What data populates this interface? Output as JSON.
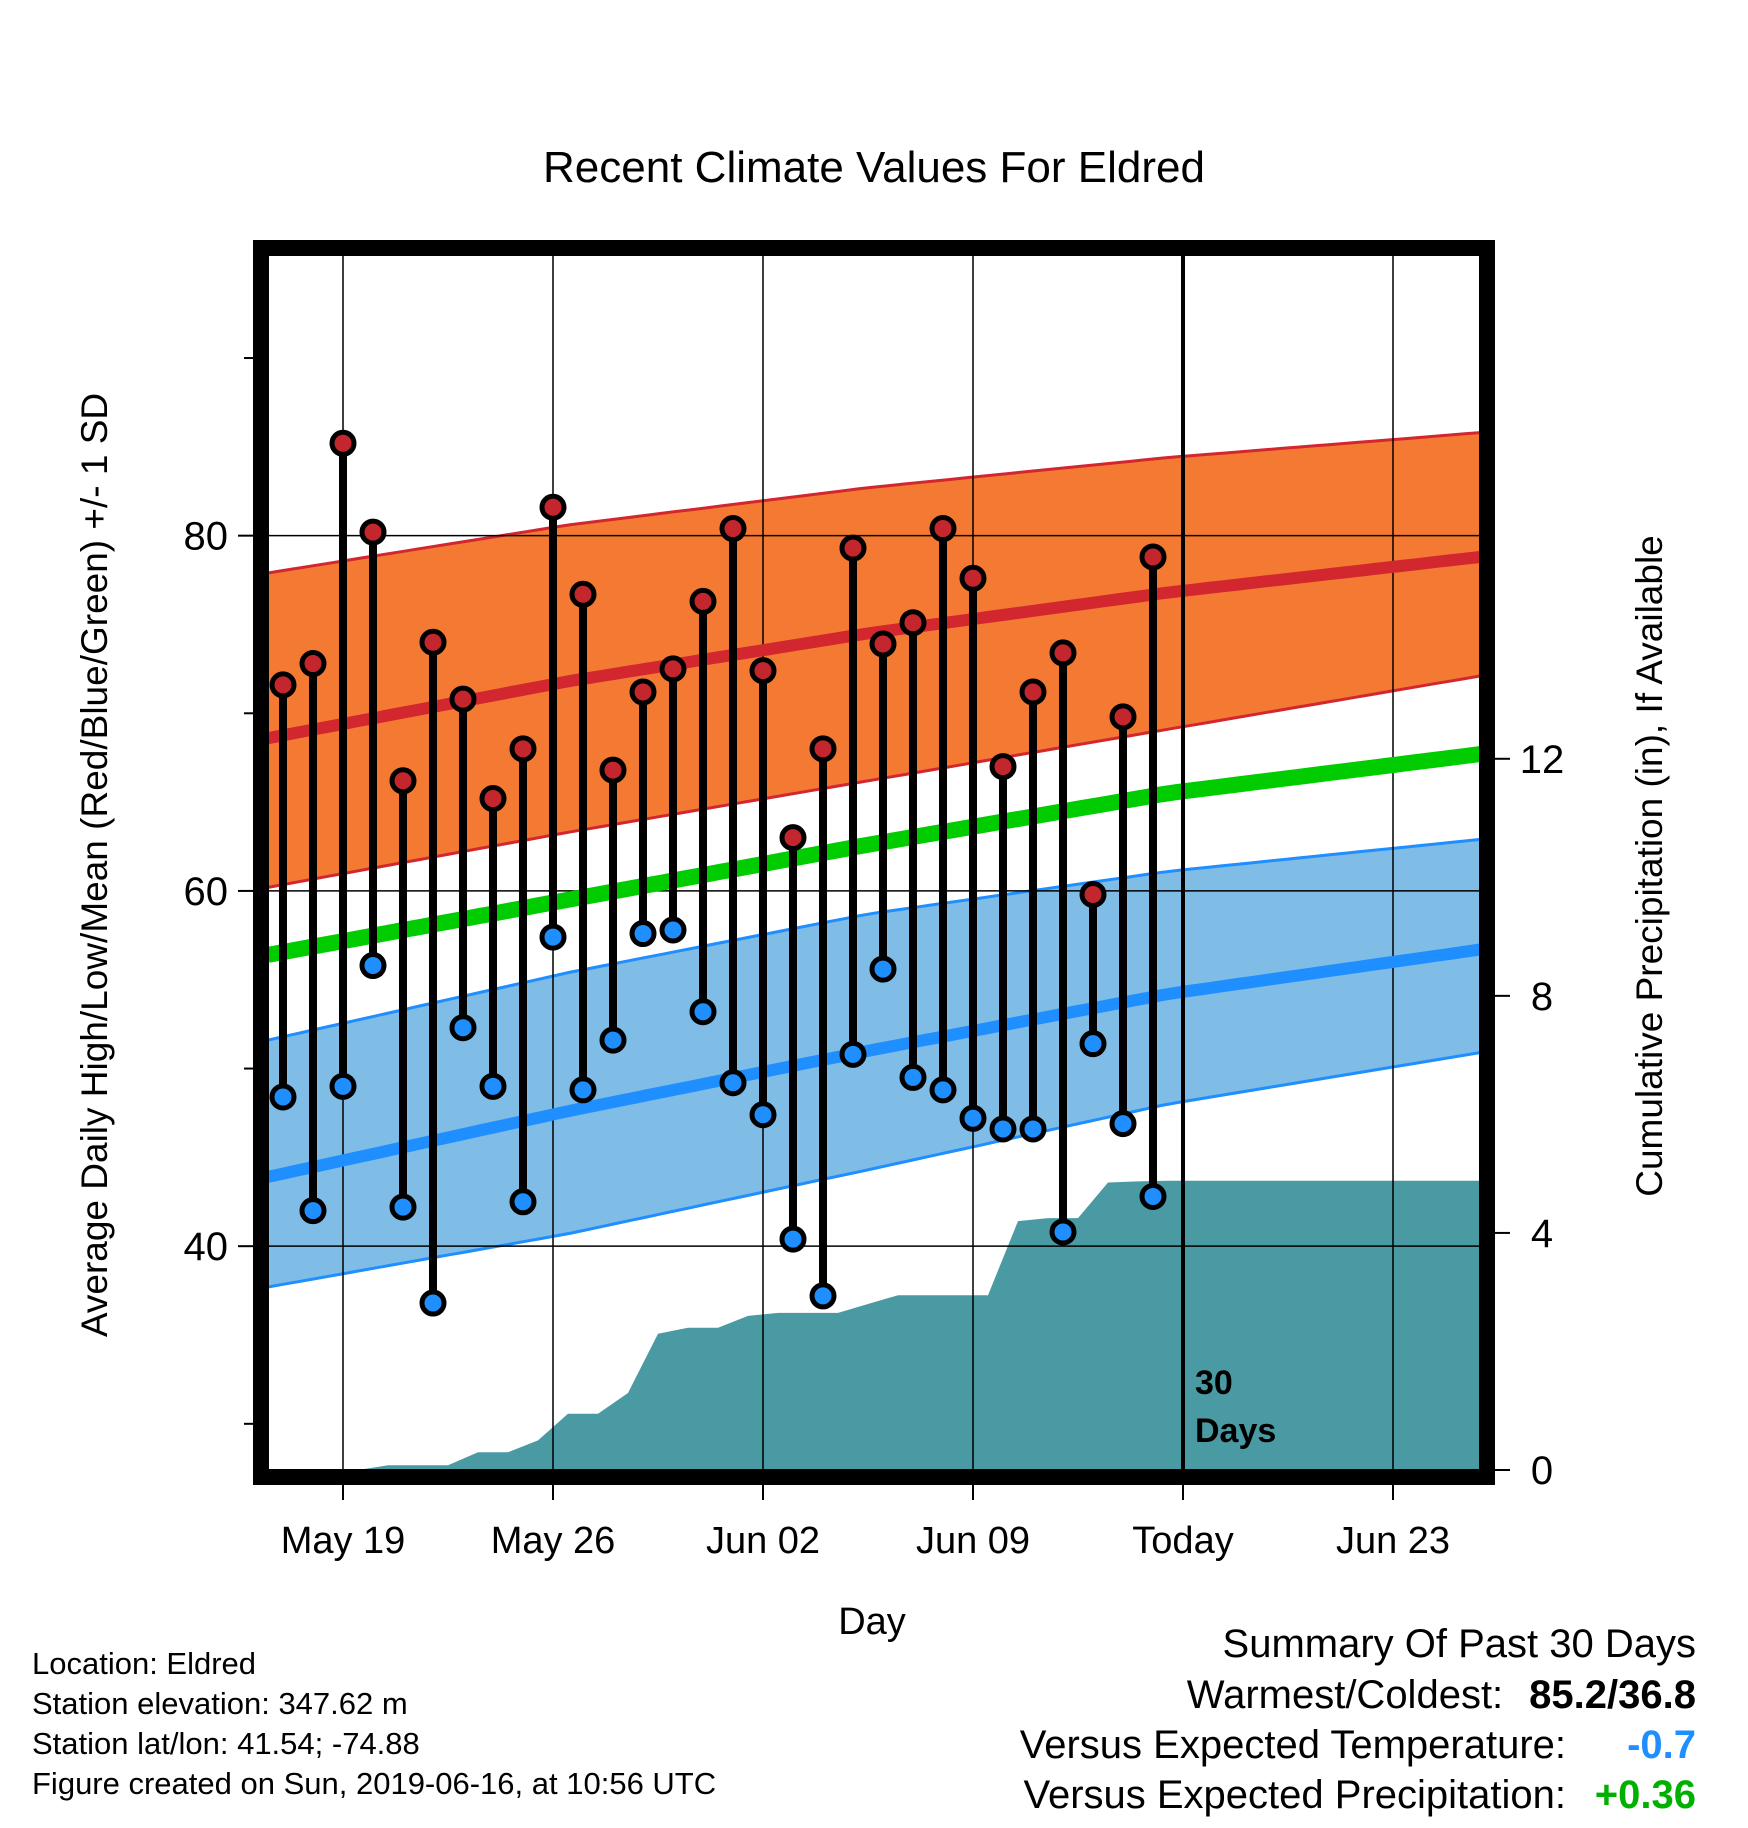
{
  "chart_data": {
    "type": "line",
    "title": "Recent Climate Values For Eldred",
    "xlabel": "Day",
    "ylabel": "Average Daily High/Low/Mean (Red/Blue/Green) +/- 1 SD",
    "ylabel_right": "Cumulative Precipitation (in), If Available",
    "start_day": "May 16",
    "xlim": [
      0,
      40.4
    ],
    "ylim": [
      27.4,
      95.8
    ],
    "ylim_right": [
      0,
      20.5
    ],
    "y_ticks": [
      40,
      60,
      80
    ],
    "y_minor_ticks": [
      30,
      50,
      70,
      90
    ],
    "y_ticks_right": [
      0,
      4,
      8,
      12
    ],
    "x_ticks": [
      {
        "x": 2.5,
        "label": "May 19"
      },
      {
        "x": 9.5,
        "label": "May 26"
      },
      {
        "x": 16.5,
        "label": "Jun 02"
      },
      {
        "x": 23.5,
        "label": "Jun 09"
      },
      {
        "x": 30.5,
        "label": "Today"
      },
      {
        "x": 37.5,
        "label": "Jun 23"
      }
    ],
    "today_x": 30.5,
    "today_label": [
      "30",
      "Days"
    ],
    "normals": {
      "x": [
        0,
        10,
        20,
        30,
        40.4
      ],
      "high_mean": [
        68.6,
        71.8,
        74.5,
        76.8,
        78.8
      ],
      "high_upper": [
        77.9,
        80.6,
        82.7,
        84.4,
        85.8
      ],
      "high_lower": [
        60.2,
        63.3,
        66.2,
        69.1,
        72.1
      ],
      "avg_mean": [
        56.4,
        59.5,
        62.6,
        65.5,
        67.7
      ],
      "low_mean": [
        43.9,
        47.6,
        51.0,
        54.2,
        56.7
      ],
      "low_upper": [
        51.6,
        55.4,
        58.7,
        61.1,
        62.9
      ],
      "low_lower": [
        37.7,
        40.7,
        44.3,
        48.0,
        50.9
      ]
    },
    "series": [
      {
        "name": "Daily High",
        "x": [
          0.5,
          1.5,
          2.5,
          3.5,
          4.5,
          5.5,
          6.5,
          7.5,
          8.5,
          9.5,
          10.5,
          11.5,
          12.5,
          13.5,
          14.5,
          15.5,
          16.5,
          17.5,
          18.5,
          19.5,
          20.5,
          21.5,
          22.5,
          23.5,
          24.5,
          25.5,
          26.5,
          27.5,
          28.5,
          29.5
        ],
        "values": [
          71.6,
          72.8,
          85.2,
          80.2,
          66.2,
          74.0,
          70.8,
          65.2,
          68.0,
          81.6,
          76.7,
          66.8,
          71.2,
          72.5,
          76.3,
          80.4,
          72.4,
          63.0,
          68.0,
          79.3,
          73.9,
          75.1,
          80.4,
          77.6,
          67.0,
          71.2,
          73.4,
          59.8,
          69.8,
          78.8
        ]
      },
      {
        "name": "Daily Low",
        "x": [
          0.5,
          1.5,
          2.5,
          3.5,
          4.5,
          5.5,
          6.5,
          7.5,
          8.5,
          9.5,
          10.5,
          11.5,
          12.5,
          13.5,
          14.5,
          15.5,
          16.5,
          17.5,
          18.5,
          19.5,
          20.5,
          21.5,
          22.5,
          23.5,
          24.5,
          25.5,
          26.5,
          27.5,
          28.5,
          29.5
        ],
        "values": [
          48.4,
          42.0,
          49.0,
          55.8,
          42.2,
          36.8,
          52.3,
          49.0,
          42.5,
          57.4,
          48.8,
          51.6,
          57.6,
          57.8,
          53.2,
          49.2,
          47.4,
          40.4,
          37.2,
          50.8,
          55.6,
          49.5,
          48.8,
          47.2,
          46.6,
          46.6,
          40.8,
          51.4,
          46.9,
          42.8
        ]
      },
      {
        "name": "Cumulative Precipitation",
        "axis": "right",
        "x": [
          0,
          3,
          4,
          6,
          7,
          8,
          9,
          10,
          11,
          12,
          13,
          14,
          15,
          16,
          17,
          18,
          19,
          20,
          21,
          22,
          23,
          24,
          25,
          26,
          27,
          28,
          29,
          30,
          40.4
        ],
        "values": [
          0,
          0,
          0.08,
          0.08,
          0.3,
          0.3,
          0.5,
          0.95,
          0.95,
          1.3,
          2.3,
          2.4,
          2.4,
          2.6,
          2.65,
          2.65,
          2.65,
          2.8,
          2.95,
          2.95,
          2.95,
          2.95,
          4.2,
          4.25,
          4.25,
          4.85,
          4.87,
          4.88,
          4.88
        ]
      }
    ]
  },
  "footer": {
    "location": "Location: Eldred",
    "elevation": "Station elevation: 347.62 m",
    "latlon": "Station lat/lon: 41.54; -74.88",
    "created": "Figure created on Sun, 2019-06-16, at 10:56 UTC"
  },
  "summary": {
    "title": "Summary Of Past 30 Days",
    "warmest_coldest_label": "Warmest/Coldest:",
    "warmest_coldest_value": "85.2/36.8",
    "temp_label": "Versus Expected Temperature:",
    "temp_value": "-0.7",
    "precip_label": "Versus Expected Precipitation:",
    "precip_value": "+0.36"
  },
  "colors": {
    "high_band": "#f47a33",
    "high_line": "#d2272e",
    "high_marker": "#c4262e",
    "low_band": "#7fbce6",
    "low_line": "#1f8fff",
    "low_marker": "#1f8fff",
    "avg_line": "#00cc00",
    "precip_fill": "#4a9aa3",
    "temp_anomaly": "#1f8fff",
    "precip_anomaly": "#00b000"
  }
}
